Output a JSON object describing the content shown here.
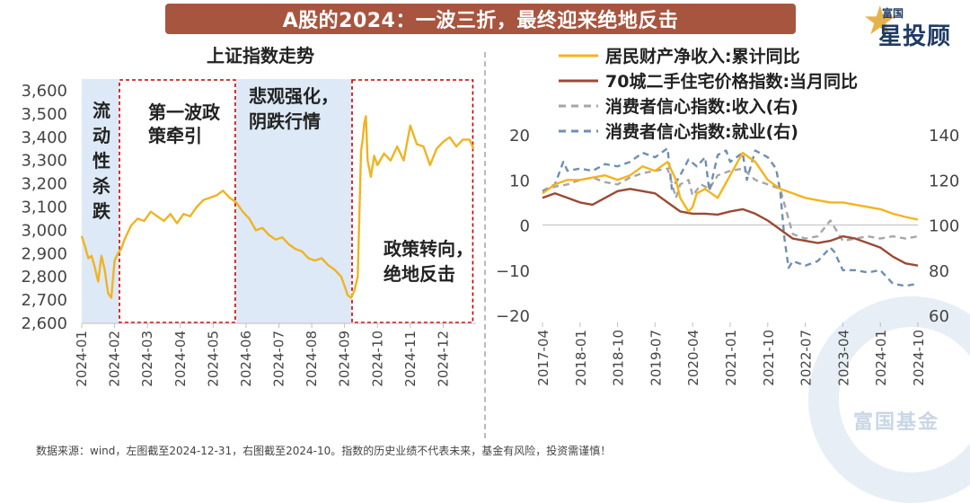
{
  "banner_title": "A股的2024：一波三折，最终迎来绝地反击",
  "logo": {
    "top_text": "富国",
    "main_text": "星投顾"
  },
  "watermark_text": "富国基金",
  "footer_text": "数据来源：wind，左图截至2024-12-31，右图截至2024-10。指数的历史业绩不代表未来，基金有风险，投资需谨慎！",
  "colors": {
    "index_line": "#f0b323",
    "income": "#f5b41b",
    "housing": "#9a4a34",
    "conf_income": "#a6a6a6",
    "conf_employment": "#6f8fb0",
    "phase_blue": "#dde9f6",
    "phase_red": "#c00000"
  },
  "chart_data": [
    {
      "type": "line",
      "title": "上证指数走势",
      "ylim": [
        2600,
        3650
      ],
      "y_ticks": [
        "3,600",
        "3,500",
        "3,400",
        "3,300",
        "3,200",
        "3,100",
        "3,000",
        "2,900",
        "2,800",
        "2,700",
        "2,600"
      ],
      "y_tick_values": [
        3600,
        3500,
        3400,
        3300,
        3200,
        3100,
        3000,
        2900,
        2800,
        2700,
        2600
      ],
      "x_ticks": [
        "2024-01",
        "2024-02",
        "2024-03",
        "2024-04",
        "2024-05",
        "2024-06",
        "2024-07",
        "2024-08",
        "2024-09",
        "2024-10",
        "2024-11",
        "2024-12"
      ],
      "xlim": [
        0,
        12
      ],
      "phases": [
        {
          "label": "流动性杀跌",
          "start": 0,
          "end": 1.12,
          "style": "blue-fill"
        },
        {
          "label": "第一波政策牵引",
          "start": 1.12,
          "end": 4.7,
          "style": "red-dashed"
        },
        {
          "label": "悲观强化，阴跌行情",
          "start": 4.7,
          "end": 8.2,
          "style": "blue-fill"
        },
        {
          "label": "政策转向，绝地反击",
          "start": 8.2,
          "end": 11.93,
          "style": "red-dashed"
        }
      ],
      "phase_labels": {
        "p1": [
          "流",
          "动",
          "性",
          "杀",
          "跌"
        ],
        "p2": [
          "第一波政",
          "策牵引"
        ],
        "p3": [
          "悲观强化，",
          "阴跌行情"
        ],
        "p4": [
          "政策转向，",
          "绝地反击"
        ]
      },
      "series": [
        {
          "x": [
            0.0,
            0.1,
            0.2,
            0.3,
            0.4,
            0.5,
            0.6,
            0.7,
            0.8,
            0.9,
            1.0,
            1.1,
            1.2,
            1.3,
            1.5,
            1.7,
            1.9,
            2.1,
            2.3,
            2.5,
            2.7,
            2.9,
            3.1,
            3.3,
            3.5,
            3.7,
            3.9,
            4.1,
            4.3,
            4.5,
            4.7,
            4.9,
            5.1,
            5.3,
            5.5,
            5.7,
            5.9,
            6.1,
            6.3,
            6.5,
            6.7,
            6.9,
            7.1,
            7.3,
            7.5,
            7.7,
            7.9,
            8.0,
            8.1,
            8.2,
            8.3,
            8.4,
            8.5,
            8.55,
            8.6,
            8.65,
            8.7,
            8.8,
            8.9,
            9.0,
            9.2,
            9.4,
            9.6,
            9.8,
            10.0,
            10.2,
            10.4,
            10.6,
            10.8,
            11.0,
            11.2,
            11.4,
            11.6,
            11.8,
            11.93
          ],
          "values": [
            2975,
            2930,
            2880,
            2890,
            2840,
            2780,
            2890,
            2830,
            2730,
            2710,
            2870,
            2900,
            2920,
            2960,
            3020,
            3050,
            3040,
            3080,
            3060,
            3040,
            3070,
            3030,
            3070,
            3060,
            3100,
            3130,
            3140,
            3150,
            3170,
            3140,
            3120,
            3080,
            3050,
            3000,
            3010,
            2980,
            2960,
            2970,
            2940,
            2920,
            2910,
            2880,
            2870,
            2880,
            2850,
            2830,
            2800,
            2760,
            2720,
            2710,
            2740,
            2800,
            3340,
            3390,
            3460,
            3490,
            3300,
            3230,
            3320,
            3280,
            3330,
            3300,
            3360,
            3300,
            3450,
            3370,
            3360,
            3280,
            3350,
            3380,
            3400,
            3360,
            3390,
            3390,
            3350
          ]
        }
      ]
    },
    {
      "type": "line",
      "ylim": [
        -20,
        20
      ],
      "y_ticks": [
        "20",
        "10",
        "0",
        "−10",
        "−20"
      ],
      "y_tick_values": [
        20,
        10,
        0,
        -10,
        -20
      ],
      "y2lim": [
        60,
        140
      ],
      "y2_ticks": [
        "140",
        "120",
        "100",
        "80",
        "60"
      ],
      "y2_tick_values": [
        140,
        120,
        100,
        80,
        60
      ],
      "x_ticks": [
        "2017-04",
        "2018-01",
        "2018-10",
        "2019-07",
        "2020-04",
        "2021-01",
        "2021-10",
        "2022-07",
        "2023-04",
        "2024-01",
        "2024-10"
      ],
      "xlim": [
        0,
        90
      ],
      "legend": [
        "居民财产净收入:累计同比",
        "70城二手住宅价格指数:当月同比",
        "消费者信心指数:收入(右)",
        "消费者信心指数:就业(右)"
      ],
      "series": [
        {
          "name": "居民财产净收入:累计同比",
          "axis": "left",
          "x": [
            0,
            3,
            6,
            9,
            12,
            15,
            18,
            21,
            24,
            27,
            30,
            32,
            33,
            35,
            36,
            37,
            39,
            42,
            45,
            48,
            51,
            54,
            57,
            60,
            63,
            66,
            69,
            72,
            75,
            78,
            81,
            84,
            87,
            90
          ],
          "values": [
            7,
            9,
            10,
            10,
            10.5,
            11,
            10,
            11,
            13,
            12,
            14,
            10,
            6,
            3,
            4,
            7,
            8,
            6,
            11,
            16,
            14,
            10,
            8,
            7,
            6,
            5.5,
            5,
            5,
            4.5,
            4,
            3.5,
            2.5,
            1.8,
            1.2
          ]
        },
        {
          "name": "70城二手住宅价格指数:当月同比",
          "axis": "left",
          "x": [
            0,
            3,
            6,
            9,
            12,
            15,
            18,
            21,
            24,
            27,
            30,
            33,
            36,
            39,
            42,
            45,
            48,
            51,
            54,
            57,
            60,
            63,
            66,
            69,
            72,
            75,
            78,
            81,
            84,
            87,
            90
          ],
          "values": [
            6,
            7,
            6,
            5,
            4.5,
            6,
            7.5,
            8,
            7.5,
            7,
            5,
            3,
            2.5,
            2.5,
            2.3,
            3,
            3.5,
            2.5,
            1,
            -1,
            -3,
            -3.5,
            -4,
            -3.5,
            -2.5,
            -3,
            -4,
            -5,
            -7,
            -8.5,
            -9
          ]
        },
        {
          "name": "消费者信心指数:收入(右)",
          "axis": "right",
          "x": [
            0,
            3,
            6,
            9,
            12,
            15,
            18,
            21,
            24,
            27,
            30,
            32,
            33,
            35,
            36,
            38,
            40,
            42,
            45,
            48,
            51,
            54,
            57,
            60,
            63,
            66,
            69,
            72,
            75,
            78,
            81,
            84,
            87,
            90
          ],
          "values": [
            115,
            117,
            118,
            120,
            121,
            119,
            118,
            121,
            123,
            124,
            125,
            112,
            118,
            120,
            113,
            118,
            116,
            122,
            124,
            125,
            120,
            118,
            116,
            96,
            94,
            95,
            102,
            93,
            94,
            95,
            94,
            95,
            94,
            95
          ]
        },
        {
          "name": "消费者信心指数:就业(右)",
          "axis": "right",
          "x": [
            0,
            3,
            5,
            6,
            9,
            12,
            15,
            18,
            21,
            24,
            27,
            30,
            31,
            33,
            35,
            37,
            39,
            40,
            42,
            44,
            45,
            48,
            49,
            51,
            54,
            56,
            57,
            58,
            59,
            60,
            63,
            66,
            69,
            70,
            72,
            75,
            78,
            81,
            84,
            87,
            90
          ],
          "values": [
            115,
            118,
            128,
            124,
            125,
            124,
            127,
            126,
            128,
            132,
            130,
            134,
            116,
            122,
            129,
            126,
            130,
            115,
            131,
            133,
            128,
            132,
            120,
            133,
            130,
            125,
            115,
            94,
            81,
            84,
            82,
            84,
            90,
            88,
            80,
            80,
            79,
            80,
            74,
            73,
            74
          ]
        }
      ]
    }
  ]
}
